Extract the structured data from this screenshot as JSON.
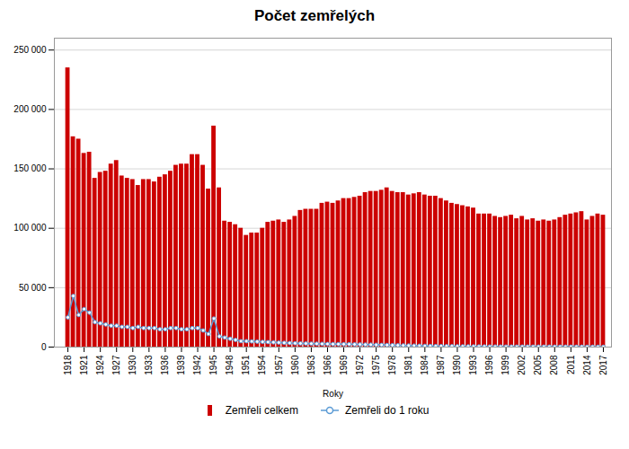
{
  "chart_data": {
    "type": "bar",
    "title": "Počet zemřelých",
    "x_label": "Roky",
    "x": [
      1918,
      1919,
      1920,
      1921,
      1922,
      1923,
      1924,
      1925,
      1926,
      1927,
      1928,
      1929,
      1930,
      1931,
      1932,
      1933,
      1934,
      1935,
      1936,
      1937,
      1938,
      1939,
      1940,
      1941,
      1942,
      1943,
      1944,
      1945,
      1946,
      1947,
      1948,
      1949,
      1950,
      1951,
      1952,
      1953,
      1954,
      1955,
      1956,
      1957,
      1958,
      1959,
      1960,
      1961,
      1962,
      1963,
      1964,
      1965,
      1966,
      1967,
      1968,
      1969,
      1970,
      1971,
      1972,
      1973,
      1974,
      1975,
      1976,
      1977,
      1978,
      1979,
      1980,
      1981,
      1982,
      1983,
      1984,
      1985,
      1986,
      1987,
      1988,
      1989,
      1990,
      1991,
      1992,
      1993,
      1994,
      1995,
      1996,
      1997,
      1998,
      1999,
      2000,
      2001,
      2002,
      2003,
      2004,
      2005,
      2006,
      2007,
      2008,
      2009,
      2010,
      2011,
      2012,
      2013,
      2014,
      2015,
      2016,
      2017
    ],
    "series": [
      {
        "name": "Zemřeli celkem",
        "type": "bar",
        "color": "#cc0000",
        "values": [
          235000,
          177000,
          175000,
          163000,
          164000,
          142000,
          147000,
          148000,
          154000,
          157000,
          144000,
          142000,
          141000,
          136000,
          141000,
          141000,
          139000,
          143000,
          145000,
          148000,
          153000,
          154000,
          154000,
          162000,
          162000,
          153000,
          133000,
          186000,
          134000,
          106000,
          105000,
          103000,
          100000,
          94000,
          96000,
          96000,
          100000,
          105000,
          106000,
          107000,
          105000,
          107000,
          110000,
          115000,
          116000,
          116000,
          116000,
          121000,
          122000,
          121000,
          123000,
          125000,
          125000,
          126000,
          127000,
          130000,
          131000,
          131000,
          132000,
          134000,
          131000,
          130000,
          130000,
          128000,
          129000,
          130000,
          128000,
          127000,
          127000,
          125000,
          123000,
          121000,
          120000,
          119000,
          118000,
          117000,
          112000,
          112000,
          112000,
          110000,
          109000,
          110000,
          111000,
          108000,
          110000,
          107000,
          108000,
          106000,
          107000,
          106000,
          107000,
          109000,
          111000,
          112000,
          113000,
          114000,
          107000,
          110000,
          112000,
          111000
        ]
      },
      {
        "name": "Zemřeli do 1 roku",
        "type": "line",
        "color": "#5b9bd5",
        "marker": "circle",
        "values": [
          25000,
          43000,
          27000,
          32000,
          29000,
          21000,
          20000,
          19000,
          18000,
          18000,
          17000,
          17000,
          16000,
          17000,
          16000,
          16000,
          16000,
          15000,
          15000,
          16000,
          16000,
          15000,
          15000,
          16000,
          16000,
          14000,
          11000,
          24000,
          9000,
          8000,
          7000,
          6000,
          5000,
          5000,
          4800,
          4600,
          4400,
          4200,
          4000,
          3800,
          3600,
          3400,
          3200,
          3100,
          3000,
          2900,
          2800,
          2700,
          2600,
          2500,
          2500,
          2400,
          2400,
          2300,
          2200,
          2100,
          2000,
          1900,
          1800,
          1700,
          1600,
          1500,
          1400,
          1300,
          1200,
          1100,
          1000,
          900,
          850,
          800,
          750,
          700,
          650,
          600,
          560,
          530,
          500,
          480,
          460,
          440,
          420,
          410,
          400,
          390,
          380,
          380,
          370,
          360,
          350,
          340,
          330,
          320,
          310,
          295,
          290,
          285,
          280,
          275,
          270,
          265
        ]
      }
    ],
    "xlim": [
      1915.5,
      2018.5
    ],
    "xticks": [
      1918,
      1921,
      1924,
      1927,
      1930,
      1933,
      1936,
      1939,
      1942,
      1945,
      1948,
      1951,
      1954,
      1957,
      1960,
      1963,
      1966,
      1969,
      1972,
      1975,
      1978,
      1981,
      1984,
      1987,
      1990,
      1993,
      1996,
      1999,
      2002,
      2005,
      2008,
      2011,
      2014,
      2017
    ],
    "ylim": [
      0,
      260000
    ],
    "yticks": [
      0,
      {
        "value": 50000,
        "label": "50 000"
      },
      {
        "value": 100000,
        "label": "100 000"
      },
      {
        "value": 150000,
        "label": "150 000"
      },
      {
        "value": 200000,
        "label": "200 000"
      },
      {
        "value": 250000,
        "label": "250 000"
      }
    ],
    "grid": "y",
    "legend": "bottom"
  }
}
